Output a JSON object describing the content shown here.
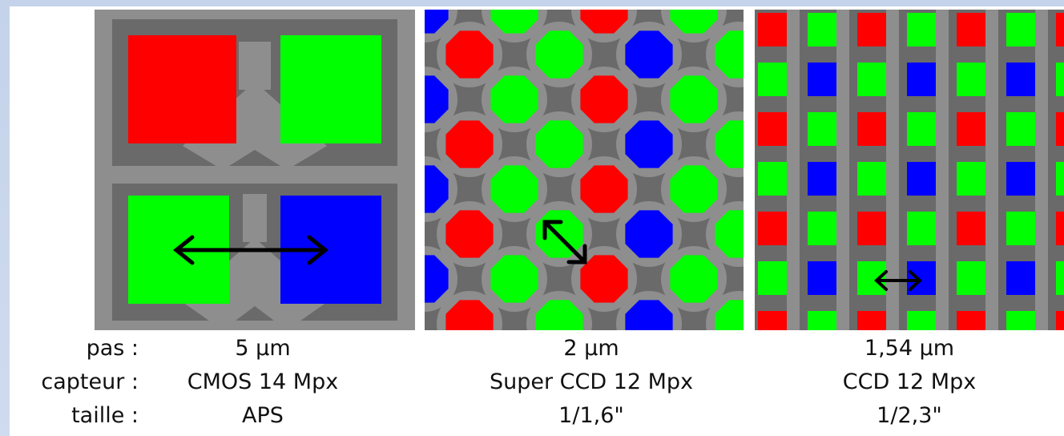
{
  "row_labels": {
    "pitch": "pas :",
    "sensor": "capteur :",
    "size": "taille :"
  },
  "sensors": [
    {
      "name": "cmos",
      "pitch": "5 µm",
      "sensor": "CMOS 14 Mpx",
      "size": "APS"
    },
    {
      "name": "super-ccd",
      "pitch": "2 µm",
      "sensor": "Super CCD 12 Mpx",
      "size": "1/1,6\""
    },
    {
      "name": "ccd",
      "pitch": "1,54 µm",
      "sensor": "CCD 12 Mpx",
      "size": "1/2,3\""
    }
  ],
  "colors": {
    "red": "#ff0000",
    "green": "#00ff00",
    "blue": "#0000ff",
    "grid_dark": "#6a6a6a",
    "grid_light": "#8e8e8e",
    "arrow": "#000000"
  }
}
